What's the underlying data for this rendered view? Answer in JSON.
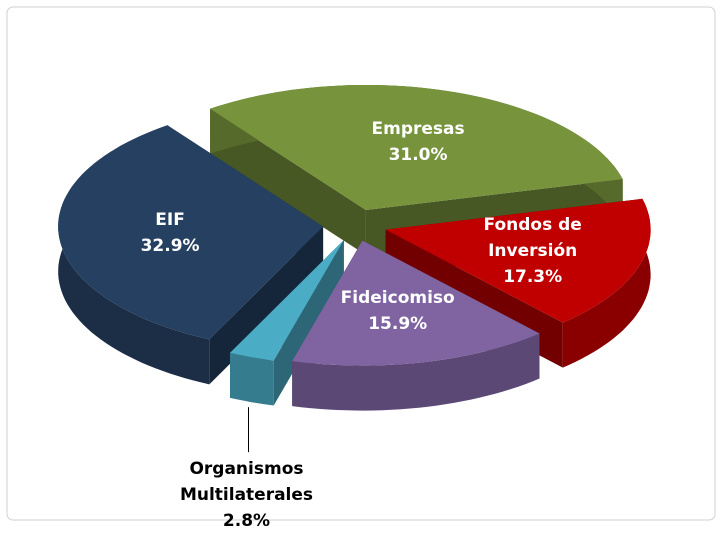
{
  "chart_data": {
    "type": "pie",
    "categories": [
      "Empresas",
      "Fondos de Inversión",
      "Fideicomiso",
      "Organismos Multilaterales",
      "EIF"
    ],
    "values": [
      31.0,
      17.3,
      15.9,
      2.8,
      32.9
    ],
    "value_labels": [
      "31.0%",
      "17.3%",
      "15.9%",
      "2.8%",
      "32.9%"
    ],
    "colors": [
      "#77933c",
      "#c00000",
      "#8064a2",
      "#4bacc6",
      "#254061"
    ]
  }
}
